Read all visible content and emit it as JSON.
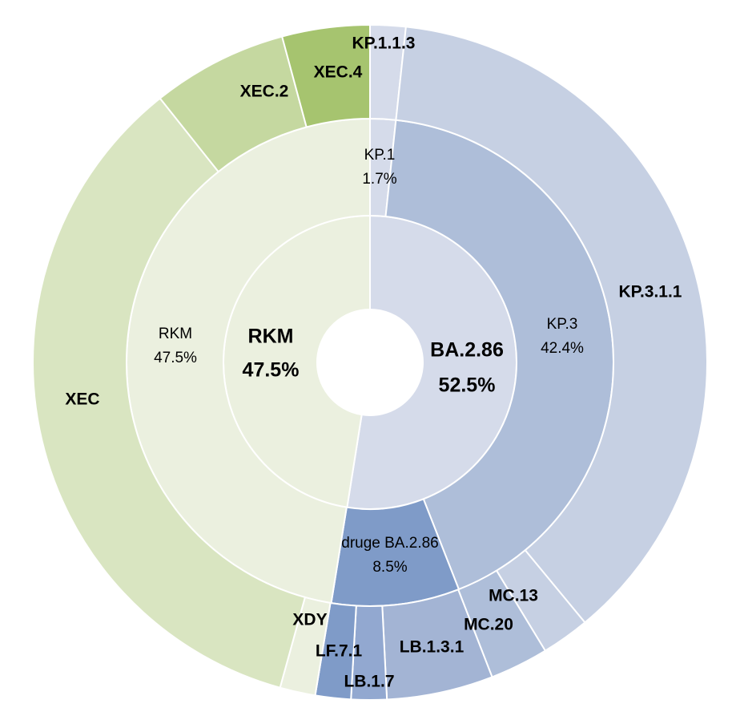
{
  "chart_data": {
    "type": "sunburst",
    "title": "",
    "rings": [
      {
        "level": "inner",
        "segments": [
          {
            "name": "BA.2.86",
            "percent": 52.5,
            "label": "BA.2.86",
            "value_label": "52.5%",
            "color": "#d5dbea"
          },
          {
            "name": "RKM",
            "percent": 47.5,
            "label": "RKM",
            "value_label": "47.5%",
            "color": "#ebf0df"
          }
        ]
      },
      {
        "level": "middle",
        "segments": [
          {
            "name": "KP.1",
            "percent": 1.7,
            "label": "KP.1",
            "value_label": "1.7%",
            "color": "#d5dbea"
          },
          {
            "name": "KP.3",
            "percent": 42.4,
            "label": "KP.3",
            "value_label": "42.4%",
            "color": "#aebed9"
          },
          {
            "name": "druge BA.2.86",
            "percent": 8.5,
            "label": "druge BA.2.86",
            "value_label": "8.5%",
            "color": "#7f9bc8"
          },
          {
            "name": "RKM",
            "percent": 47.5,
            "label": "RKM",
            "value_label": "47.5%",
            "color": "#ebf0df"
          }
        ]
      },
      {
        "level": "outer",
        "segments": [
          {
            "name": "KP.1.1.3",
            "percent": 1.7,
            "label": "KP.1.1.3",
            "color": "#d5dbea"
          },
          {
            "name": "KP.3.1.1",
            "percent": 37.3,
            "label": "KP.3.1.1",
            "color": "#c6d0e3"
          },
          {
            "name": "MC.13",
            "percent": 2.3,
            "label": "MC.13",
            "color": "#c6d0e3"
          },
          {
            "name": "MC.20",
            "percent": 2.8,
            "label": "MC.20",
            "color": "#aebed9"
          },
          {
            "name": "LB.1.3.1",
            "percent": 5.1,
            "label": "LB.1.3.1",
            "color": "#a3b4d4"
          },
          {
            "name": "LB.1.7",
            "percent": 1.7,
            "label": "LB.1.7",
            "color": "#92a8d0"
          },
          {
            "name": "LF.7.1",
            "percent": 1.7,
            "label": "LF.7.1",
            "color": "#7f9bc8"
          },
          {
            "name": "XDY",
            "percent": 1.7,
            "label": "XDY",
            "color": "#ebf0df"
          },
          {
            "name": "XEC",
            "percent": 35.0,
            "label": "XEC",
            "color": "#d9e5c1"
          },
          {
            "name": "XEC.2",
            "percent": 6.5,
            "label": "XEC.2",
            "color": "#c5d8a0"
          },
          {
            "name": "XEC.4",
            "percent": 4.2,
            "label": "XEC.4",
            "color": "#a6c46f"
          }
        ]
      }
    ]
  }
}
